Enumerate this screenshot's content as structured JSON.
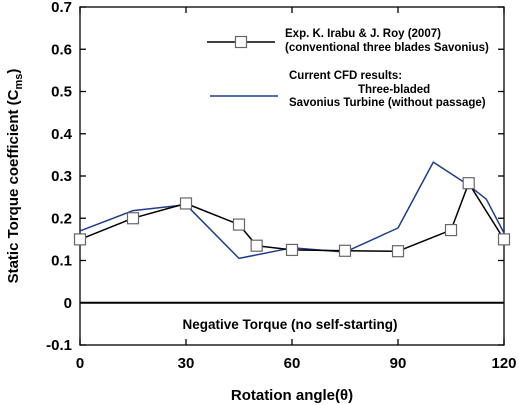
{
  "chart_data": {
    "type": "line",
    "xlabel": "Rotation angle(θ)",
    "ylabel": "Static Torque coefficient (C",
    "ylabel_sub": "ms",
    "ylabel_end": ")",
    "xlim": [
      0,
      120
    ],
    "ylim": [
      -0.1,
      0.7
    ],
    "x_ticks": [
      0,
      30,
      60,
      90,
      120
    ],
    "y_ticks": [
      -0.1,
      0,
      0.1,
      0.2,
      0.3,
      0.4,
      0.5,
      0.6,
      0.7
    ],
    "x_tick_labels": [
      "0",
      "30",
      "60",
      "90",
      "120"
    ],
    "y_tick_labels": [
      "-0.1",
      "0",
      "0.1",
      "0.2",
      "0.3",
      "0.4",
      "0.5",
      "0.6",
      "0.7"
    ],
    "zero_line": 0,
    "annotation": "Negative Torque (no self-starting)",
    "series": [
      {
        "name": "Exp. K. Irabu & J. Roy (2007)",
        "name_line2": "(conventional three blades Savonius)",
        "color": "#000000",
        "marker": "open-square",
        "x": [
          0,
          15,
          30,
          45,
          50,
          60,
          75,
          90,
          105,
          110,
          120
        ],
        "y": [
          0.15,
          0.2,
          0.235,
          0.185,
          0.135,
          0.125,
          0.123,
          0.122,
          0.172,
          0.283,
          0.15
        ]
      },
      {
        "name": "Current CFD results:",
        "name_line2": "Three-bladed",
        "name_line3": "Savonius Turbine (without passage)",
        "color": "#1f3d8c",
        "marker": "none",
        "x": [
          0,
          15,
          30,
          45,
          60,
          75,
          90,
          100,
          110,
          115,
          120
        ],
        "y": [
          0.17,
          0.218,
          0.232,
          0.105,
          0.13,
          0.12,
          0.177,
          0.333,
          0.278,
          0.245,
          0.165
        ]
      }
    ]
  }
}
